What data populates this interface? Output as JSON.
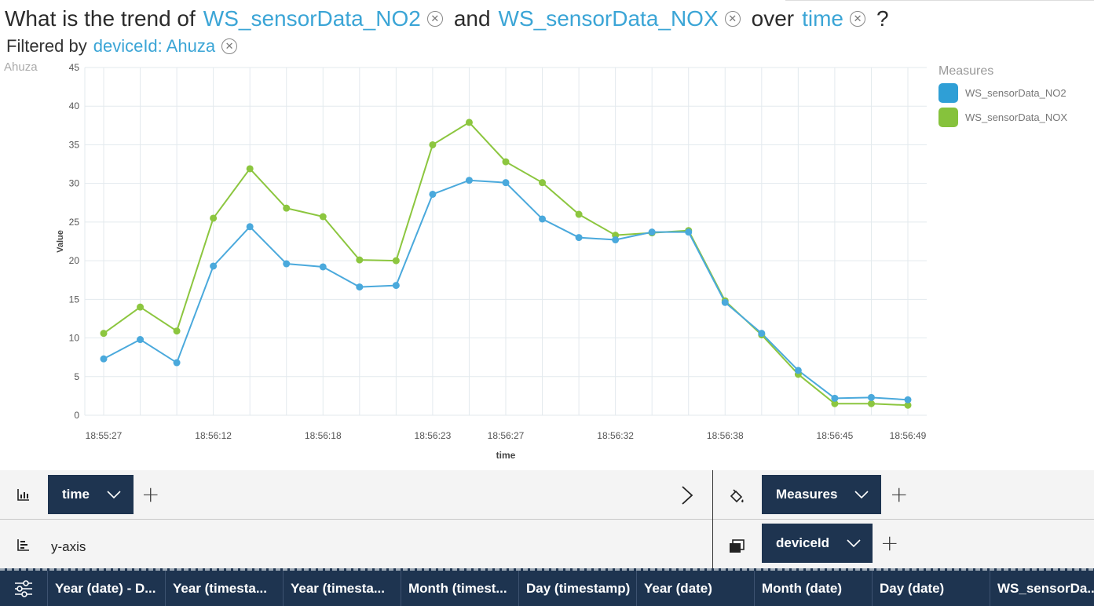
{
  "question": {
    "prefix": "What is the trend of",
    "token1": "WS_sensorData_NO2",
    "and": "and",
    "token2": "WS_sensorData_NOX",
    "over": "over",
    "token3": "time",
    "suffix": "?"
  },
  "filter": {
    "label": "Filtered by",
    "token": "deviceId: Ahuza"
  },
  "colors": {
    "accent": "#3ba5d6",
    "no2": "#4aa9dc",
    "nox": "#8cc63f",
    "dark": "#1e3450"
  },
  "chart_data": {
    "type": "line",
    "panel_label": "Ahuza",
    "xlabel": "time",
    "ylabel": "Value",
    "ylim": [
      0,
      45
    ],
    "yticks": [
      0,
      5,
      10,
      15,
      20,
      25,
      30,
      35,
      40,
      45
    ],
    "x_tick_labels": [
      {
        "index": 0,
        "label": "18:55:27"
      },
      {
        "index": 3,
        "label": "18:56:12"
      },
      {
        "index": 6,
        "label": "18:56:18"
      },
      {
        "index": 9,
        "label": "18:56:23"
      },
      {
        "index": 11,
        "label": "18:56:27"
      },
      {
        "index": 14,
        "label": "18:56:32"
      },
      {
        "index": 17,
        "label": "18:56:38"
      },
      {
        "index": 20,
        "label": "18:56:45"
      },
      {
        "index": 22,
        "label": "18:56:49"
      }
    ],
    "legend_title": "Measures",
    "series": [
      {
        "name": "WS_sensorData_NO2",
        "color": "#4aa9dc",
        "values": [
          7.3,
          9.8,
          6.8,
          19.3,
          24.4,
          19.6,
          19.2,
          16.6,
          16.8,
          28.6,
          30.4,
          30.1,
          25.4,
          23.0,
          22.7,
          23.7,
          23.7,
          14.6,
          10.6,
          5.8,
          2.2,
          2.3,
          2.0
        ]
      },
      {
        "name": "WS_sensorData_NOX",
        "color": "#8cc63f",
        "values": [
          10.6,
          14.0,
          10.9,
          25.5,
          31.9,
          26.8,
          25.7,
          20.1,
          20.0,
          35.0,
          37.9,
          32.8,
          30.1,
          26.0,
          23.3,
          23.6,
          23.9,
          14.8,
          10.4,
          5.3,
          1.5,
          1.5,
          1.3
        ]
      }
    ]
  },
  "shelves": {
    "x_pill": "time",
    "color_pill": "Measures",
    "y_placeholder": "y-axis",
    "detail_pill": "deviceId"
  },
  "table": {
    "columns": [
      "Year (date) - D...",
      "Year (timesta...",
      "Year (timesta...",
      "Month (timest...",
      "Day (timestamp)",
      "Year (date)",
      "Month (date)",
      "Day (date)",
      "WS_sensorDa..."
    ]
  }
}
